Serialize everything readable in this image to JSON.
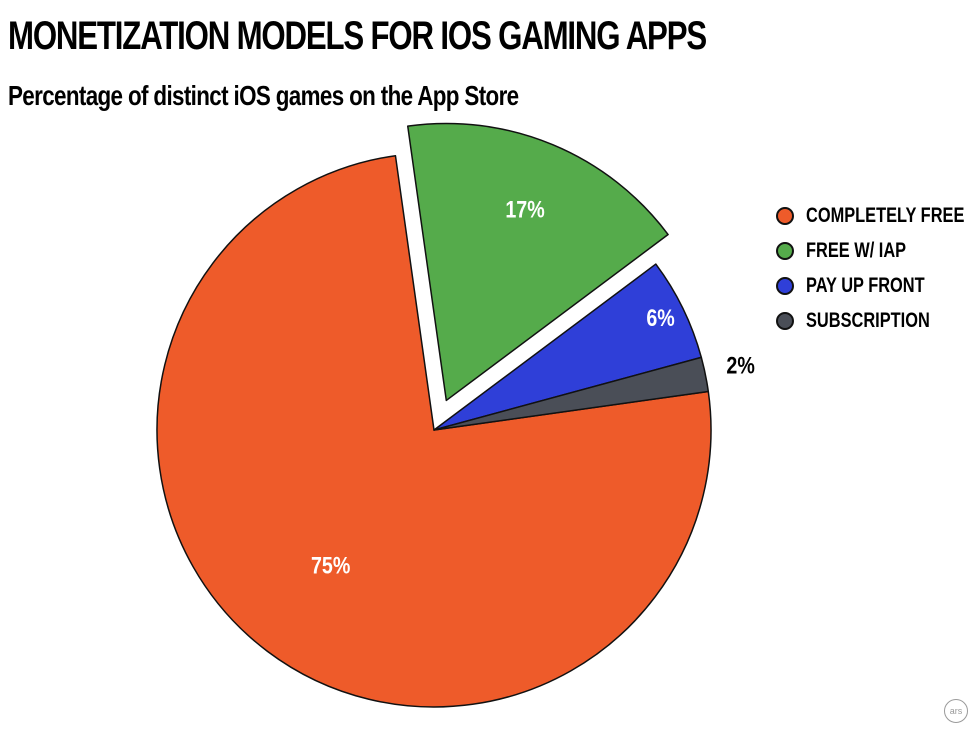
{
  "chart_data": {
    "type": "pie",
    "title": "MONETIZATION MODELS FOR IOS GAMING APPS",
    "subtitle": "Percentage of distinct iOS games on the App Store",
    "slices": [
      {
        "name": "COMPLETELY FREE",
        "value": 75,
        "label": "75%",
        "color": "#ee5b2a",
        "label_color": "#ffffff",
        "exploded": false
      },
      {
        "name": "FREE W/ IAP",
        "value": 17,
        "label": "17%",
        "color": "#55ab4b",
        "label_color": "#ffffff",
        "exploded": true
      },
      {
        "name": "PAY UP FRONT",
        "value": 6,
        "label": "6%",
        "color": "#2f3fd8",
        "label_color": "#ffffff",
        "exploded": false
      },
      {
        "name": "SUBSCRIPTION",
        "value": 2,
        "label": "2%",
        "color": "#4a4e57",
        "label_color": "#000000",
        "exploded": false
      }
    ],
    "legend_position": "right"
  },
  "credit": "ars"
}
